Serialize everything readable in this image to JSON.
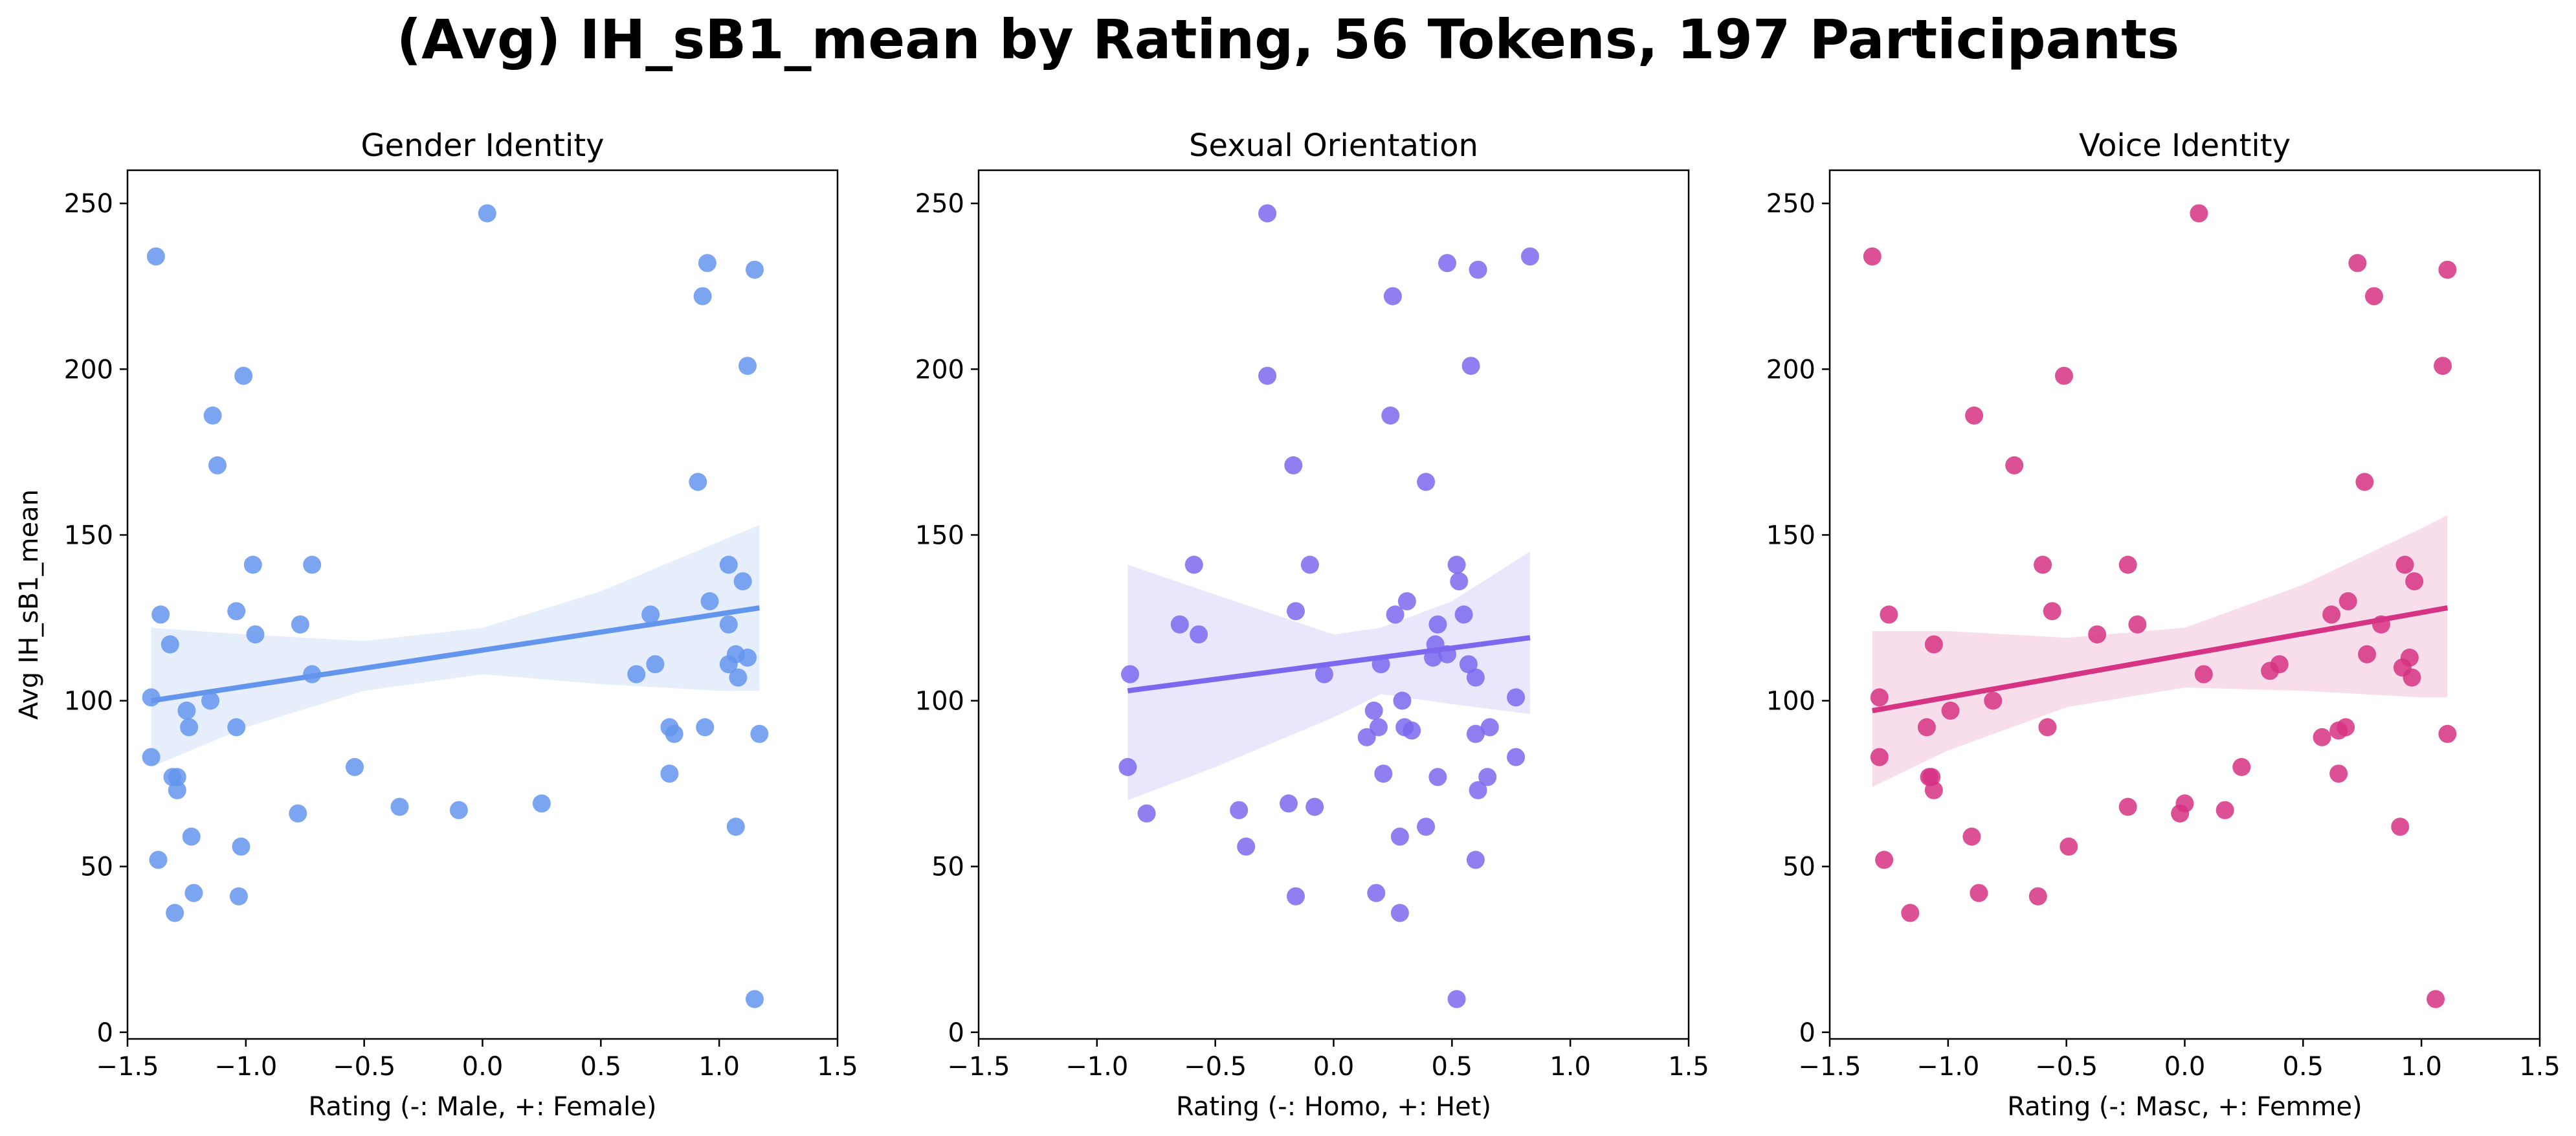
{
  "figure_title": "(Avg) IH_sB1_mean by Rating, 56 Tokens, 197 Participants",
  "chart_data": [
    {
      "type": "scatter",
      "title": "Gender Identity",
      "xlabel": "Rating (-: Male, +: Female)",
      "ylabel": "Avg IH_sB1_mean",
      "xlim": [
        -1.5,
        1.5
      ],
      "ylim": [
        -2,
        260
      ],
      "xticks": [
        -1.5,
        -1.0,
        -0.5,
        0.0,
        0.5,
        1.0,
        1.5
      ],
      "xtick_labels": [
        "−1.5",
        "−1.0",
        "−0.5",
        "0.0",
        "0.5",
        "1.0",
        "1.5"
      ],
      "yticks": [
        0,
        50,
        100,
        150,
        200,
        250
      ],
      "ytick_labels": [
        "0",
        "50",
        "100",
        "150",
        "200",
        "250"
      ],
      "color": "#6495ED",
      "grid": false,
      "points": [
        [
          -1.38,
          234
        ],
        [
          0.02,
          247
        ],
        [
          0.95,
          232
        ],
        [
          1.15,
          230
        ],
        [
          0.93,
          222
        ],
        [
          1.12,
          201
        ],
        [
          -1.01,
          198
        ],
        [
          -1.14,
          186
        ],
        [
          -1.12,
          171
        ],
        [
          0.91,
          166
        ],
        [
          -0.97,
          141
        ],
        [
          -0.72,
          141
        ],
        [
          1.04,
          141
        ],
        [
          1.1,
          136
        ],
        [
          -1.36,
          126
        ],
        [
          -1.04,
          127
        ],
        [
          0.71,
          126
        ],
        [
          -0.77,
          123
        ],
        [
          0.96,
          130
        ],
        [
          1.04,
          123
        ],
        [
          -0.96,
          120
        ],
        [
          -1.32,
          117
        ],
        [
          1.07,
          114
        ],
        [
          1.12,
          113
        ],
        [
          -1.4,
          101
        ],
        [
          -0.72,
          108
        ],
        [
          0.65,
          108
        ],
        [
          0.73,
          111
        ],
        [
          1.04,
          111
        ],
        [
          1.08,
          107
        ],
        [
          -1.25,
          97
        ],
        [
          -1.15,
          100
        ],
        [
          -1.24,
          92
        ],
        [
          -1.04,
          92
        ],
        [
          0.79,
          92
        ],
        [
          0.94,
          92
        ],
        [
          0.81,
          90
        ],
        [
          1.17,
          90
        ],
        [
          -1.4,
          83
        ],
        [
          -1.31,
          77
        ],
        [
          -1.29,
          77
        ],
        [
          -1.29,
          73
        ],
        [
          -0.54,
          80
        ],
        [
          0.79,
          78
        ],
        [
          -0.35,
          68
        ],
        [
          -0.1,
          67
        ],
        [
          -0.78,
          66
        ],
        [
          0.25,
          69
        ],
        [
          1.07,
          62
        ],
        [
          -1.23,
          59
        ],
        [
          -1.37,
          52
        ],
        [
          -1.02,
          56
        ],
        [
          -1.22,
          42
        ],
        [
          -1.03,
          41
        ],
        [
          -1.3,
          36
        ],
        [
          1.15,
          10
        ]
      ],
      "regression": {
        "x": [
          -1.4,
          1.17
        ],
        "y": [
          100,
          128
        ]
      },
      "confidence_band": {
        "x": [
          -1.4,
          -1.0,
          -0.5,
          0.0,
          0.5,
          1.0,
          1.17
        ],
        "lower": [
          80,
          92,
          103,
          108,
          105,
          103,
          103
        ],
        "upper": [
          122,
          120,
          118,
          122,
          133,
          148,
          153
        ]
      }
    },
    {
      "type": "scatter",
      "title": "Sexual Orientation",
      "xlabel": "Rating (-: Homo, +: Het)",
      "ylabel": "",
      "xlim": [
        -1.5,
        1.5
      ],
      "ylim": [
        -2,
        260
      ],
      "xticks": [
        -1.5,
        -1.0,
        -0.5,
        0.0,
        0.5,
        1.0,
        1.5
      ],
      "xtick_labels": [
        "−1.5",
        "−1.0",
        "−0.5",
        "0.0",
        "0.5",
        "1.0",
        "1.5"
      ],
      "yticks": [
        0,
        50,
        100,
        150,
        200,
        250
      ],
      "ytick_labels": [
        "0",
        "50",
        "100",
        "150",
        "200",
        "250"
      ],
      "color": "#7B68EE",
      "grid": false,
      "points": [
        [
          -0.28,
          247
        ],
        [
          0.83,
          234
        ],
        [
          0.48,
          232
        ],
        [
          0.61,
          230
        ],
        [
          0.25,
          222
        ],
        [
          0.58,
          201
        ],
        [
          -0.28,
          198
        ],
        [
          0.24,
          186
        ],
        [
          -0.17,
          171
        ],
        [
          0.39,
          166
        ],
        [
          -0.59,
          141
        ],
        [
          -0.1,
          141
        ],
        [
          0.52,
          141
        ],
        [
          0.53,
          136
        ],
        [
          0.31,
          130
        ],
        [
          -0.65,
          123
        ],
        [
          -0.57,
          120
        ],
        [
          -0.16,
          127
        ],
        [
          0.26,
          126
        ],
        [
          0.55,
          126
        ],
        [
          0.44,
          123
        ],
        [
          0.43,
          117
        ],
        [
          0.42,
          113
        ],
        [
          0.48,
          114
        ],
        [
          -0.86,
          108
        ],
        [
          -0.04,
          108
        ],
        [
          0.2,
          111
        ],
        [
          0.57,
          111
        ],
        [
          0.6,
          107
        ],
        [
          0.77,
          101
        ],
        [
          0.17,
          97
        ],
        [
          0.29,
          100
        ],
        [
          0.19,
          92
        ],
        [
          0.3,
          92
        ],
        [
          0.33,
          91
        ],
        [
          0.66,
          92
        ],
        [
          0.14,
          89
        ],
        [
          0.6,
          90
        ],
        [
          0.77,
          83
        ],
        [
          -0.87,
          80
        ],
        [
          0.21,
          78
        ],
        [
          0.44,
          77
        ],
        [
          0.65,
          77
        ],
        [
          0.61,
          73
        ],
        [
          -0.79,
          66
        ],
        [
          -0.4,
          67
        ],
        [
          -0.19,
          69
        ],
        [
          -0.08,
          68
        ],
        [
          0.39,
          62
        ],
        [
          -0.37,
          56
        ],
        [
          0.28,
          59
        ],
        [
          0.6,
          52
        ],
        [
          -0.16,
          41
        ],
        [
          0.18,
          42
        ],
        [
          0.28,
          36
        ],
        [
          0.52,
          10
        ]
      ],
      "regression": {
        "x": [
          -0.87,
          0.83
        ],
        "y": [
          103,
          119
        ]
      },
      "confidence_band": {
        "x": [
          -0.87,
          -0.5,
          0.0,
          0.2,
          0.5,
          0.83
        ],
        "lower": [
          70,
          80,
          95,
          102,
          99,
          96
        ],
        "upper": [
          141,
          132,
          120,
          122,
          130,
          145
        ]
      }
    },
    {
      "type": "scatter",
      "title": "Voice Identity",
      "xlabel": "Rating (-: Masc, +: Femme)",
      "ylabel": "",
      "xlim": [
        -1.5,
        1.5
      ],
      "ylim": [
        -2,
        260
      ],
      "xticks": [
        -1.5,
        -1.0,
        -0.5,
        0.0,
        0.5,
        1.0,
        1.5
      ],
      "xtick_labels": [
        "−1.5",
        "−1.0",
        "−0.5",
        "0.0",
        "0.5",
        "1.0",
        "1.5"
      ],
      "yticks": [
        0,
        50,
        100,
        150,
        200,
        250
      ],
      "ytick_labels": [
        "0",
        "50",
        "100",
        "150",
        "200",
        "250"
      ],
      "color": "#D63384",
      "grid": false,
      "points": [
        [
          -1.32,
          234
        ],
        [
          0.06,
          247
        ],
        [
          0.73,
          232
        ],
        [
          1.11,
          230
        ],
        [
          0.8,
          222
        ],
        [
          1.09,
          201
        ],
        [
          -0.51,
          198
        ],
        [
          -0.89,
          186
        ],
        [
          -0.72,
          171
        ],
        [
          0.76,
          166
        ],
        [
          -0.6,
          141
        ],
        [
          -0.24,
          141
        ],
        [
          0.93,
          141
        ],
        [
          0.97,
          136
        ],
        [
          -1.25,
          126
        ],
        [
          0.69,
          130
        ],
        [
          -0.56,
          127
        ],
        [
          0.62,
          126
        ],
        [
          -0.2,
          123
        ],
        [
          0.83,
          123
        ],
        [
          -0.37,
          120
        ],
        [
          -1.06,
          117
        ],
        [
          0.77,
          114
        ],
        [
          0.95,
          113
        ],
        [
          -1.29,
          101
        ],
        [
          0.08,
          108
        ],
        [
          0.36,
          109
        ],
        [
          0.4,
          111
        ],
        [
          0.92,
          110
        ],
        [
          0.96,
          107
        ],
        [
          -0.99,
          97
        ],
        [
          -0.81,
          100
        ],
        [
          -1.09,
          92
        ],
        [
          -0.58,
          92
        ],
        [
          0.65,
          91
        ],
        [
          0.68,
          92
        ],
        [
          0.58,
          89
        ],
        [
          1.11,
          90
        ],
        [
          -1.29,
          83
        ],
        [
          -1.08,
          77
        ],
        [
          -1.06,
          73
        ],
        [
          -1.07,
          77
        ],
        [
          0.24,
          80
        ],
        [
          0.65,
          78
        ],
        [
          -0.24,
          68
        ],
        [
          0.0,
          69
        ],
        [
          -0.02,
          66
        ],
        [
          0.17,
          67
        ],
        [
          0.91,
          62
        ],
        [
          -0.9,
          59
        ],
        [
          -1.27,
          52
        ],
        [
          -0.49,
          56
        ],
        [
          -0.87,
          42
        ],
        [
          -0.62,
          41
        ],
        [
          -1.16,
          36
        ],
        [
          1.06,
          10
        ]
      ],
      "regression": {
        "x": [
          -1.32,
          1.11
        ],
        "y": [
          97,
          128
        ]
      },
      "confidence_band": {
        "x": [
          -1.32,
          -1.0,
          -0.5,
          0.0,
          0.5,
          1.0,
          1.11
        ],
        "lower": [
          74,
          85,
          98,
          104,
          103,
          101,
          101
        ],
        "upper": [
          121,
          121,
          119,
          122,
          135,
          152,
          156
        ]
      }
    }
  ]
}
